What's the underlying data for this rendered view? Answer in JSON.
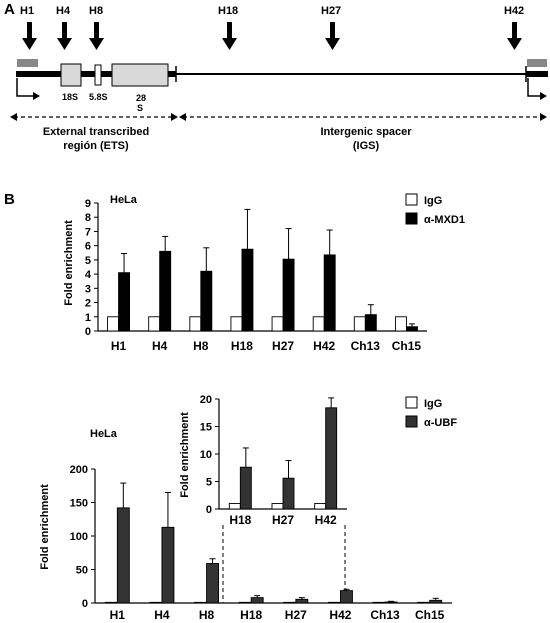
{
  "panel_a": {
    "label": "A",
    "sites": [
      "H1",
      "H4",
      "H8",
      "H18",
      "H27",
      "H42"
    ],
    "rrna_labels": [
      "18S",
      "5.8S",
      "28",
      "S"
    ],
    "ets_label": [
      "External transcribed",
      "región (ETS)"
    ],
    "igs_label": [
      "Intergenic spacer",
      "(IGS)"
    ]
  },
  "panel_b": {
    "label": "B"
  },
  "chart_data": [
    {
      "type": "bar",
      "title": "HeLa",
      "ylabel": "Fold enrichment",
      "ylim": [
        0,
        9
      ],
      "yticks": [
        0,
        1,
        2,
        3,
        4,
        5,
        6,
        7,
        8,
        9
      ],
      "categories": [
        "H1",
        "H4",
        "H8",
        "H18",
        "H27",
        "H42",
        "Ch13",
        "Ch15"
      ],
      "series": [
        {
          "name": "IgG",
          "color": "#ffffff",
          "values": [
            1,
            1,
            1,
            1,
            1,
            1,
            1,
            1
          ],
          "errors": [
            0,
            0,
            0,
            0,
            0,
            0,
            0,
            0
          ]
        },
        {
          "name": "α-MXD1",
          "color": "#000000",
          "values": [
            4.1,
            5.6,
            4.2,
            5.75,
            5.05,
            5.35,
            1.15,
            0.3
          ],
          "errors": [
            1.35,
            1.05,
            1.65,
            2.8,
            2.15,
            1.75,
            0.7,
            0.2
          ]
        }
      ],
      "legend": "top-right",
      "grid": false
    },
    {
      "type": "bar",
      "title": "HeLa",
      "ylabel": "Fold enrichment",
      "ylim": [
        0,
        200
      ],
      "yticks": [
        0,
        50,
        100,
        150,
        200
      ],
      "categories": [
        "H1",
        "H4",
        "H8",
        "H18",
        "H27",
        "H42",
        "Ch13",
        "Ch15"
      ],
      "series": [
        {
          "name": "IgG",
          "color": "#ffffff",
          "values": [
            1,
            1,
            1,
            1,
            1,
            1,
            1,
            1
          ],
          "errors": [
            0,
            0,
            0,
            0,
            0,
            0,
            0,
            0
          ]
        },
        {
          "name": "α-UBF",
          "color": "#333333",
          "values": [
            142,
            113,
            59,
            8,
            5.5,
            18.5,
            1.5,
            4
          ],
          "errors": [
            37,
            52,
            7,
            3,
            2.5,
            2,
            1,
            3
          ]
        }
      ],
      "legend": "top-right",
      "grid": false
    },
    {
      "type": "bar",
      "inset": true,
      "ylabel": "Fold enrichment",
      "ylim": [
        0,
        20
      ],
      "yticks": [
        0,
        5,
        10,
        15,
        20
      ],
      "categories": [
        "H18",
        "H27",
        "H42"
      ],
      "series": [
        {
          "name": "IgG",
          "color": "#ffffff",
          "values": [
            1,
            1,
            1
          ],
          "errors": [
            0,
            0,
            0
          ]
        },
        {
          "name": "α-UBF",
          "color": "#333333",
          "values": [
            7.6,
            5.6,
            18.4
          ],
          "errors": [
            3.5,
            3.2,
            1.8
          ]
        }
      ],
      "grid": false
    }
  ]
}
